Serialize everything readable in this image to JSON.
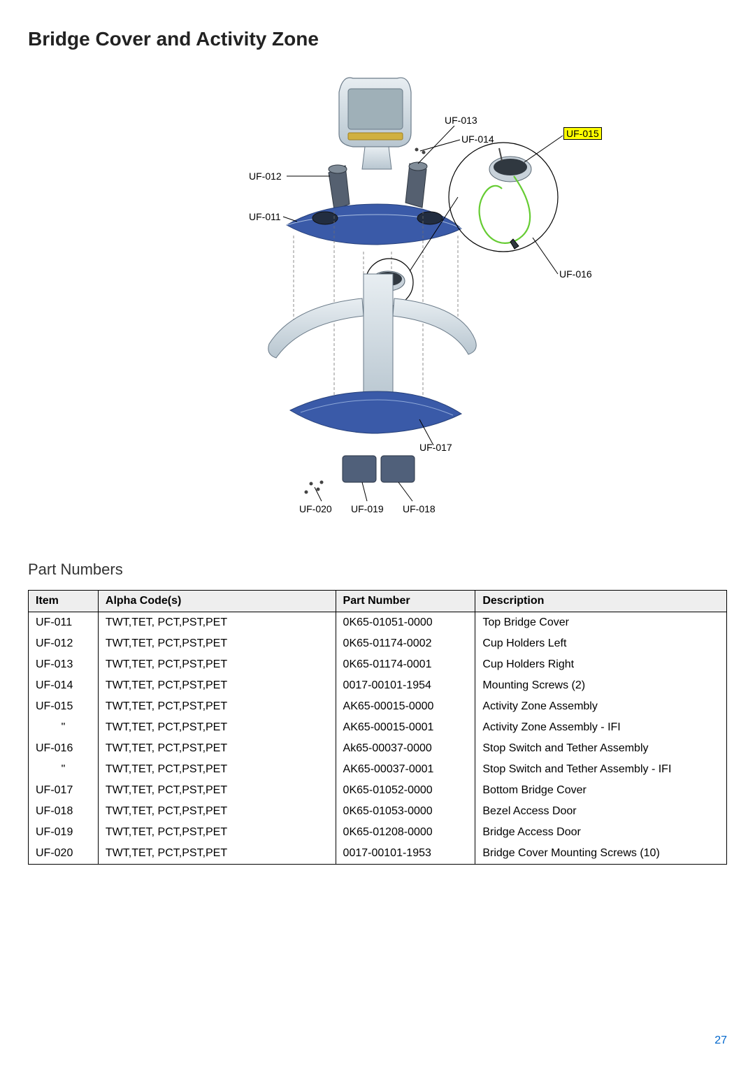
{
  "title": "Bridge Cover and Activity Zone",
  "subheading": "Part Numbers",
  "page_number": "27",
  "diagram": {
    "labels": {
      "uf011": "UF-011",
      "uf012": "UF-012",
      "uf013": "UF-013",
      "uf014": "UF-014",
      "uf015": "UF-015",
      "uf016": "UF-016",
      "uf017": "UF-017",
      "uf018": "UF-018",
      "uf019": "UF-019",
      "uf020": "UF-020"
    },
    "colors": {
      "part_fill": "#d8e0e8",
      "part_shadow": "#9aaab8",
      "accent_blue": "#3a5aa8",
      "tether_green": "#66cc33",
      "highlight_bg": "#ffff00",
      "leader": "#000000",
      "dash": "#707070"
    }
  },
  "table": {
    "columns": [
      "Item",
      "Alpha Code(s)",
      "Part Number",
      "Description"
    ],
    "rows": [
      [
        "UF-011",
        "TWT,TET, PCT,PST,PET",
        "0K65-01051-0000",
        "Top Bridge Cover"
      ],
      [
        "UF-012",
        "TWT,TET, PCT,PST,PET",
        "0K65-01174-0002",
        "Cup Holders Left"
      ],
      [
        "UF-013",
        "TWT,TET, PCT,PST,PET",
        "0K65-01174-0001",
        "Cup Holders Right"
      ],
      [
        "UF-014",
        "TWT,TET, PCT,PST,PET",
        "0017-00101-1954",
        "Mounting Screws (2)"
      ],
      [
        "UF-015",
        "TWT,TET, PCT,PST,PET",
        "AK65-00015-0000",
        "Activity Zone Assembly"
      ],
      [
        "\"",
        "TWT,TET, PCT,PST,PET",
        "AK65-00015-0001",
        "Activity Zone Assembly - IFI"
      ],
      [
        "UF-016",
        "TWT,TET, PCT,PST,PET",
        "Ak65-00037-0000",
        "Stop Switch and Tether Assembly"
      ],
      [
        "\"",
        "TWT,TET, PCT,PST,PET",
        "AK65-00037-0001",
        "Stop Switch and Tether Assembly - IFI"
      ],
      [
        "UF-017",
        "TWT,TET, PCT,PST,PET",
        "0K65-01052-0000",
        "Bottom Bridge Cover"
      ],
      [
        "UF-018",
        "TWT,TET, PCT,PST,PET",
        "0K65-01053-0000",
        "Bezel Access Door"
      ],
      [
        "UF-019",
        "TWT,TET, PCT,PST,PET",
        "0K65-01208-0000",
        "Bridge Access Door"
      ],
      [
        "UF-020",
        "TWT,TET, PCT,PST,PET",
        "0017-00101-1953",
        "Bridge Cover Mounting Screws (10)"
      ]
    ],
    "header_bg": "#eeeeee",
    "border_color": "#000000",
    "font_size": 16
  }
}
